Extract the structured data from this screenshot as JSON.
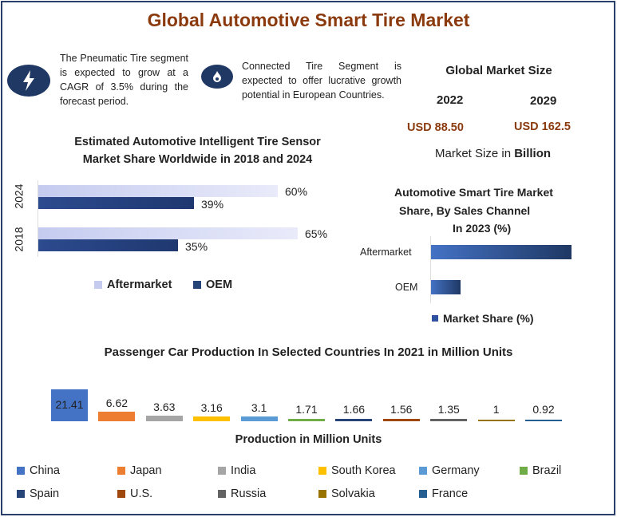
{
  "title": "Global Automotive Smart Tire Market",
  "notes": [
    {
      "icon": "lightning-icon",
      "text": "The Pneumatic Tire segment is expected to grow at a CAGR of 3.5% during the forecast period."
    },
    {
      "icon": "flame-icon",
      "text": "Connected Tire Segment is expected to offer lucrative growth potential in European Countries."
    }
  ],
  "market_size": {
    "heading": "Global Market Size",
    "year1": "2022",
    "year2": "2029",
    "value1": "USD 88.50",
    "value2": "USD 162.5",
    "unit_prefix": "Market Size in ",
    "unit_bold": "Billion"
  },
  "chart_data": [
    {
      "type": "bar",
      "orientation": "horizontal",
      "title": "Estimated Automotive Intelligent Tire Sensor Market Share Worldwide in 2018 and 2024",
      "categories": [
        "2024",
        "2018"
      ],
      "series": [
        {
          "name": "Aftermarket",
          "values": [
            60,
            65
          ],
          "labels": [
            "60%",
            "65%"
          ],
          "color": "#d6daf5"
        },
        {
          "name": "OEM",
          "values": [
            39,
            35
          ],
          "labels": [
            "39%",
            "35%"
          ],
          "color": "#264478"
        }
      ]
    },
    {
      "type": "bar",
      "orientation": "horizontal",
      "title_lines": [
        "Automotive Smart Tire Market",
        "Share, By Sales Channel",
        "In 2023 (%)"
      ],
      "categories": [
        "Aftermarket",
        "OEM"
      ],
      "series": [
        {
          "name": "Market Share (%)",
          "values": [
            83,
            17
          ],
          "color": "#4472c4"
        }
      ]
    },
    {
      "type": "bar",
      "title": "Passenger Car Production In Selected Countries In 2021 in Million Units",
      "xlabel": "Production in Million Units",
      "categories": [
        "China",
        "Japan",
        "India",
        "South Korea",
        "Germany",
        "Brazil",
        "Spain",
        "U.S.",
        "Russia",
        "Solvakia",
        "France"
      ],
      "values": [
        21.41,
        6.62,
        3.63,
        3.16,
        3.1,
        1.71,
        1.66,
        1.56,
        1.35,
        1,
        0.92
      ],
      "labels": [
        "21.41",
        "6.62",
        "3.63",
        "3.16",
        "3.1",
        "1.71",
        "1.66",
        "1.56",
        "1.35",
        "1",
        "0.92"
      ],
      "colors": [
        "#4472c4",
        "#ed7d31",
        "#a5a5a5",
        "#ffc000",
        "#5b9bd5",
        "#70ad47",
        "#264478",
        "#9e480e",
        "#636363",
        "#997300",
        "#255e91"
      ]
    }
  ]
}
